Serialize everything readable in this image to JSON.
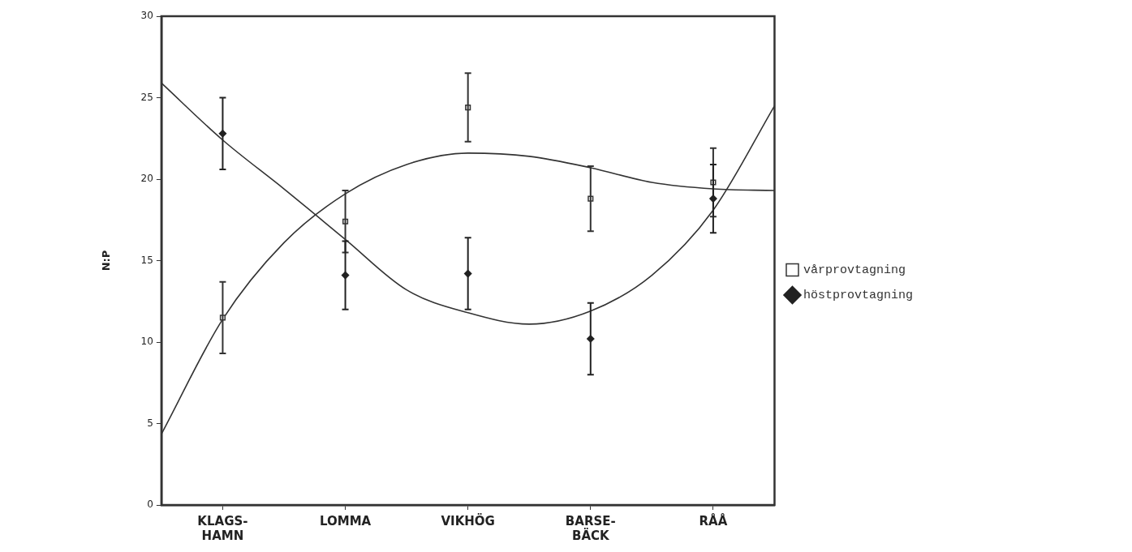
{
  "chart_data": {
    "type": "scatter",
    "ylabel": "N:P",
    "categories": [
      null,
      "KLAGS-\nHAMN",
      null,
      "LOMMA",
      null,
      "VIKHÖG",
      null,
      "BARSE-\nBÄCK",
      null,
      "RÅÅ",
      null
    ],
    "ylim": [
      0,
      30
    ],
    "yticks": [
      0,
      5,
      10,
      15,
      20,
      25,
      30
    ],
    "grid": false,
    "legend": "right",
    "series": [
      {
        "name": "vårprovtagning",
        "marker": "square",
        "color": "#333333",
        "values": [
          null,
          11.5,
          null,
          17.4,
          null,
          24.4,
          null,
          18.8,
          null,
          19.8,
          null
        ],
        "errors": [
          null,
          2.2,
          null,
          1.9,
          null,
          2.1,
          null,
          2.0,
          null,
          2.1,
          null
        ]
      },
      {
        "name": "höstprovtagning",
        "marker": "diamond",
        "color": "#222222",
        "values": [
          null,
          22.8,
          null,
          14.1,
          null,
          14.2,
          null,
          10.2,
          null,
          18.8,
          null
        ],
        "errors": [
          null,
          2.2,
          null,
          2.1,
          null,
          2.2,
          null,
          2.2,
          null,
          2.1,
          null
        ]
      },
      {
        "type": "line",
        "marker": "none",
        "color": "#333333",
        "values": [
          4.35,
          11.4,
          16.1,
          19.1,
          20.9,
          21.6,
          21.4,
          20.7,
          19.8,
          19.4,
          19.3
        ]
      },
      {
        "type": "line",
        "marker": "none",
        "color": "#333333",
        "values": [
          25.9,
          22.4,
          19.4,
          16.3,
          13.2,
          11.8,
          11.1,
          11.9,
          14.1,
          18.1,
          24.5
        ]
      }
    ]
  }
}
